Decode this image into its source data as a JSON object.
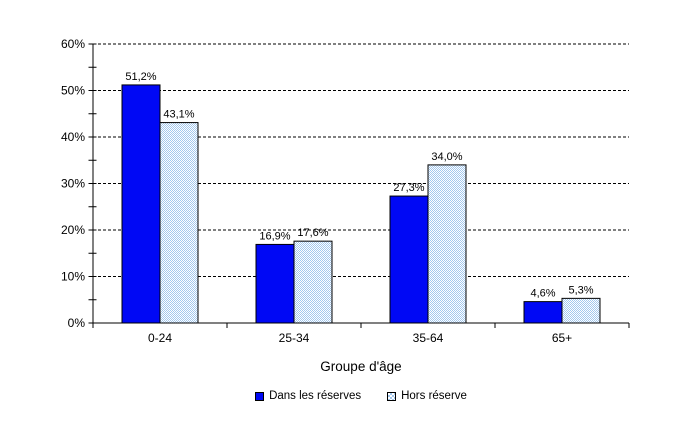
{
  "chart_data": {
    "type": "bar",
    "title": "",
    "xlabel": "Groupe d'âge",
    "ylabel": "",
    "categories": [
      "0-24",
      "25-34",
      "35-64",
      "65+"
    ],
    "series": [
      {
        "name": "Dans les réserves",
        "values": [
          51.2,
          16.9,
          27.3,
          4.6
        ],
        "value_labels": [
          "51,2%",
          "16,9%",
          "27,3%",
          "4,6%"
        ],
        "color": "#0008f5",
        "fill_style": "solid"
      },
      {
        "name": "Hors réserve",
        "values": [
          43.1,
          17.6,
          34.0,
          5.3
        ],
        "value_labels": [
          "43,1%",
          "17,6%",
          "34,0%",
          "5,3%"
        ],
        "color": "#a3c8ee",
        "fill_style": "checker"
      }
    ],
    "y_axis": {
      "min": 0,
      "max": 60,
      "major_step": 10,
      "minor_step": 5,
      "tick_labels": [
        "0%",
        "10%",
        "20%",
        "30%",
        "40%",
        "50%",
        "60%"
      ]
    },
    "grid": "horizontal dashed lines at major ticks",
    "legend_position": "bottom-center",
    "colors": {
      "axis": "#000000",
      "gridline": "#000000",
      "bar_border": "#000000",
      "text": "#000000",
      "background": "#ffffff"
    }
  }
}
